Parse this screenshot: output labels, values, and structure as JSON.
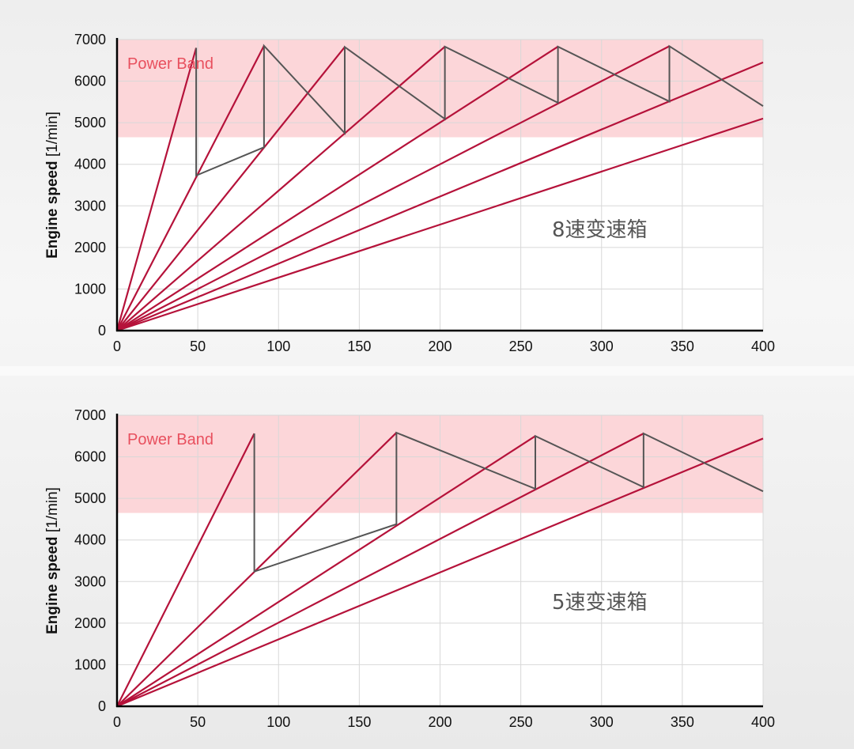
{
  "chart_data": [
    {
      "type": "line",
      "ylabel_bold": "Engine speed",
      "ylabel_unit": "[1/min]",
      "x_ticks": [
        "0",
        "50",
        "100",
        "150",
        "200",
        "250",
        "300",
        "350",
        "400"
      ],
      "y_ticks": [
        "0",
        "1000",
        "2000",
        "3000",
        "4000",
        "5000",
        "6000",
        "7000"
      ],
      "xlim": [
        0,
        400
      ],
      "ylim": [
        0,
        7000
      ],
      "grid": true,
      "power_band": {
        "label": "Power Band",
        "range": [
          4650,
          7000
        ],
        "color": "#fcd6d9"
      },
      "annotation": "8速变速箱",
      "gear_lines": [
        {
          "x": [
            0,
            49
          ],
          "y": [
            0,
            6800
          ]
        },
        {
          "x": [
            0,
            91
          ],
          "y": [
            0,
            6850
          ]
        },
        {
          "x": [
            0,
            141
          ],
          "y": [
            0,
            6820
          ]
        },
        {
          "x": [
            0,
            203
          ],
          "y": [
            0,
            6830
          ]
        },
        {
          "x": [
            0,
            273
          ],
          "y": [
            0,
            6830
          ]
        },
        {
          "x": [
            0,
            342
          ],
          "y": [
            0,
            6840
          ]
        },
        {
          "x": [
            0,
            400
          ],
          "y": [
            0,
            6450
          ]
        },
        {
          "x": [
            0,
            400
          ],
          "y": [
            0,
            5100
          ]
        }
      ],
      "shift_path": {
        "x": [
          49,
          49,
          91,
          91,
          141,
          141,
          203,
          203,
          273,
          273,
          342,
          342,
          400
        ],
        "y": [
          6800,
          3730,
          4410,
          6850,
          4750,
          6820,
          5090,
          6830,
          5480,
          6830,
          5510,
          6840,
          5400
        ]
      },
      "line_color": "#b5123a",
      "shift_color": "#555555"
    },
    {
      "type": "line",
      "ylabel_bold": "Engine speed",
      "ylabel_unit": "[1/min]",
      "x_ticks": [
        "0",
        "50",
        "100",
        "150",
        "200",
        "250",
        "300",
        "350",
        "400"
      ],
      "y_ticks": [
        "0",
        "1000",
        "2000",
        "3000",
        "4000",
        "5000",
        "6000",
        "7000"
      ],
      "xlim": [
        0,
        400
      ],
      "ylim": [
        0,
        7000
      ],
      "grid": true,
      "power_band": {
        "label": "Power Band",
        "range": [
          4650,
          7000
        ],
        "color": "#fcd6d9"
      },
      "annotation": "5速变速箱",
      "gear_lines": [
        {
          "x": [
            0,
            85
          ],
          "y": [
            0,
            6560
          ]
        },
        {
          "x": [
            0,
            173
          ],
          "y": [
            0,
            6580
          ]
        },
        {
          "x": [
            0,
            259
          ],
          "y": [
            0,
            6500
          ]
        },
        {
          "x": [
            0,
            326
          ],
          "y": [
            0,
            6560
          ]
        },
        {
          "x": [
            0,
            400
          ],
          "y": [
            0,
            6440
          ]
        }
      ],
      "shift_path": {
        "x": [
          85,
          85,
          173,
          173,
          259,
          259,
          326,
          326,
          400
        ],
        "y": [
          6560,
          3240,
          4380,
          6580,
          5230,
          6500,
          5270,
          6560,
          5170
        ]
      },
      "line_color": "#b5123a",
      "shift_color": "#555555"
    }
  ]
}
